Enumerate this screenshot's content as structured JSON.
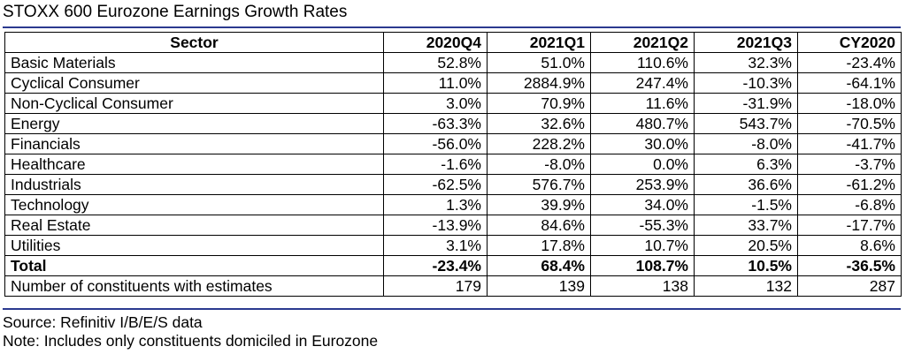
{
  "title": "STOXX 600 Eurozone Earnings Growth Rates",
  "colors": {
    "rule": "#2b3a8f",
    "border": "#000000"
  },
  "chart_data": {
    "type": "table",
    "title": "STOXX 600 Eurozone Earnings Growth Rates",
    "columns": [
      "Sector",
      "2020Q4",
      "2021Q1",
      "2021Q2",
      "2021Q3",
      "CY2020"
    ],
    "rows": [
      [
        "Basic Materials",
        "52.8%",
        "51.0%",
        "110.6%",
        "32.3%",
        "-23.4%"
      ],
      [
        "Cyclical Consumer",
        "11.0%",
        "2884.9%",
        "247.4%",
        "-10.3%",
        "-64.1%"
      ],
      [
        "Non-Cyclical Consumer",
        "3.0%",
        "70.9%",
        "11.6%",
        "-31.9%",
        "-18.0%"
      ],
      [
        "Energy",
        "-63.3%",
        "32.6%",
        "480.7%",
        "543.7%",
        "-70.5%"
      ],
      [
        "Financials",
        "-56.0%",
        "228.2%",
        "30.0%",
        "-8.0%",
        "-41.7%"
      ],
      [
        "Healthcare",
        "-1.6%",
        "-8.0%",
        "0.0%",
        "6.3%",
        "-3.7%"
      ],
      [
        "Industrials",
        "-62.5%",
        "576.7%",
        "253.9%",
        "36.6%",
        "-61.2%"
      ],
      [
        "Technology",
        "1.3%",
        "39.9%",
        "34.0%",
        "-1.5%",
        "-6.8%"
      ],
      [
        "Real Estate",
        "-13.9%",
        "84.6%",
        "-55.3%",
        "33.7%",
        "-17.7%"
      ],
      [
        "Utilities",
        "3.1%",
        "17.8%",
        "10.7%",
        "20.5%",
        "8.6%"
      ]
    ],
    "total": [
      "Total",
      "-23.4%",
      "68.4%",
      "108.7%",
      "10.5%",
      "-36.5%"
    ],
    "constituents": [
      "Number of constituents with estimates",
      "179",
      "139",
      "138",
      "132",
      "287"
    ]
  },
  "footer": {
    "source": "Source: Refinitiv I/B/E/S data",
    "note": "Note: Includes only constituents domiciled in Eurozone"
  }
}
